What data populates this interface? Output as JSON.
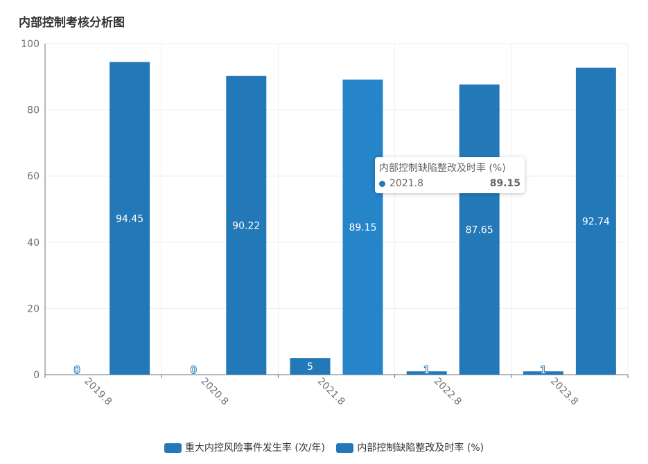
{
  "chart_data": {
    "type": "bar",
    "title": "内部控制考核分析图",
    "categories": [
      "2019.8",
      "2020.8",
      "2021.8",
      "2022.8",
      "2023.8"
    ],
    "series": [
      {
        "name": "重大内控风险事件发生率 (次/年)",
        "values": [
          0,
          0,
          5,
          1,
          1
        ],
        "color": "#2379b8"
      },
      {
        "name": "内部控制缺陷整改及时率 (%)",
        "values": [
          94.45,
          90.22,
          89.15,
          87.65,
          92.74
        ],
        "color": "#2379b8"
      }
    ],
    "ylim": [
      0,
      100
    ],
    "yticks": [
      0,
      20,
      40,
      60,
      80,
      100
    ],
    "grid": true,
    "legend_position": "bottom"
  },
  "tooltip": {
    "title": "内部控制缺陷整改及时率 (%)",
    "category": "2021.8",
    "value": "89.15"
  }
}
